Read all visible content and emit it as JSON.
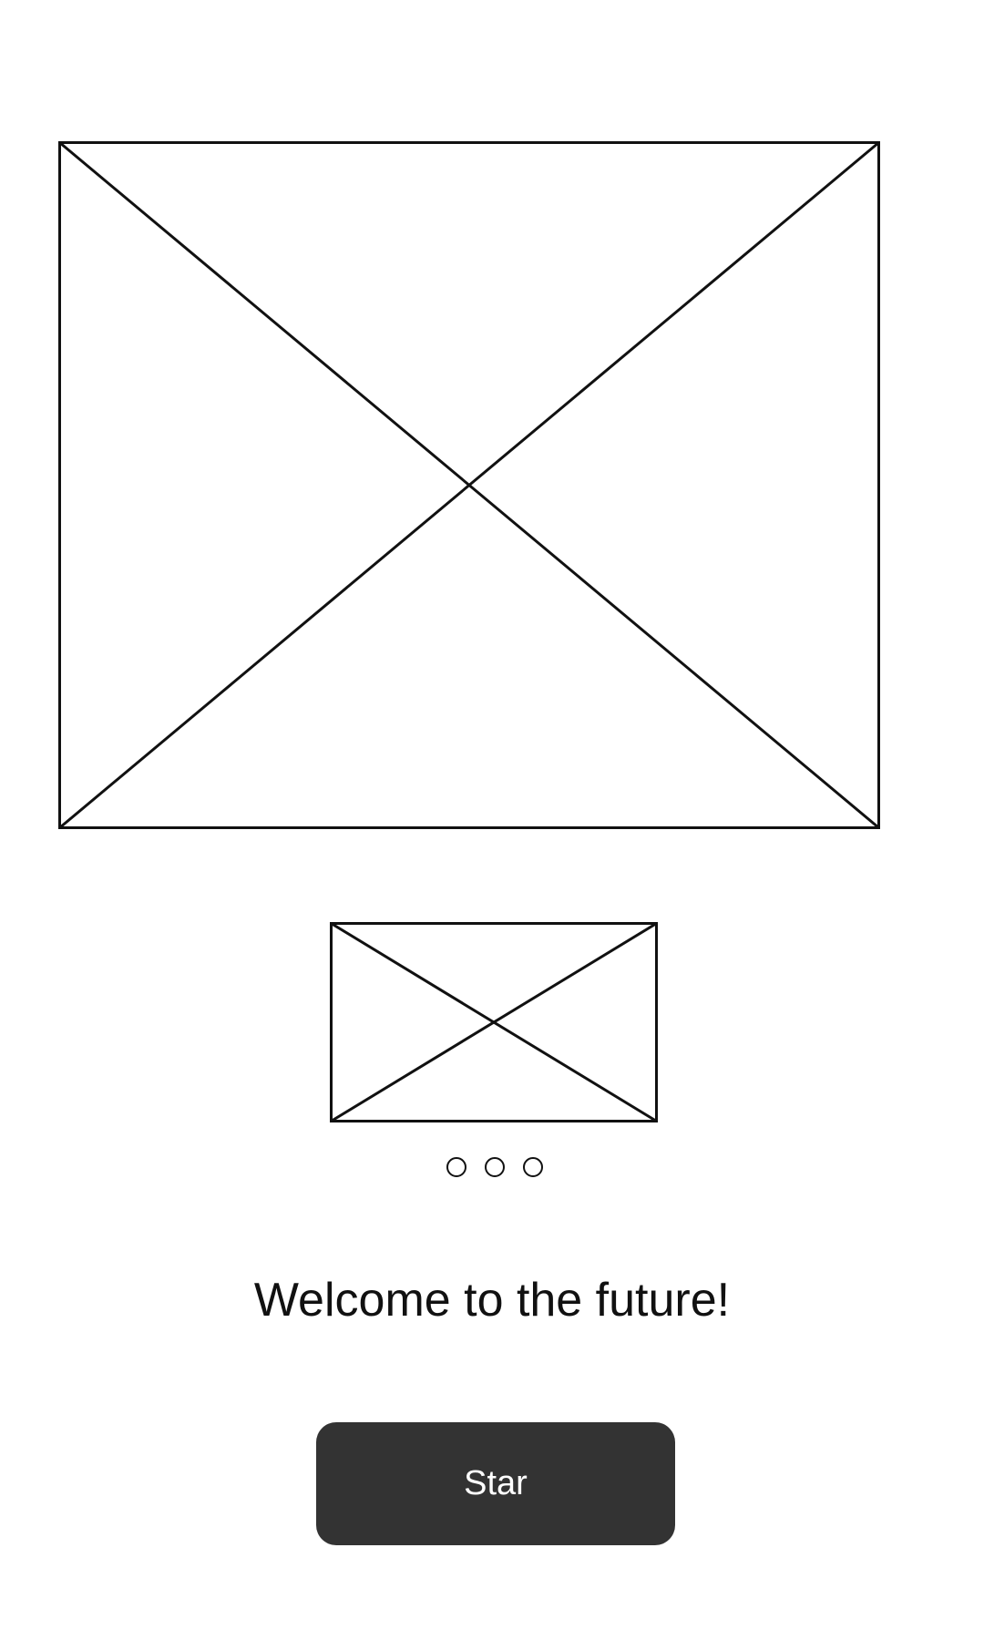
{
  "hero": {
    "icon": "image-placeholder-icon"
  },
  "carousel": {
    "icon": "image-placeholder-icon",
    "page_count": 3
  },
  "welcome": {
    "text": "Welcome to the future!"
  },
  "start_button": {
    "label": "Star"
  },
  "colors": {
    "button_bg": "#333333",
    "button_text": "#ffffff",
    "stroke": "#111111",
    "background": "#ffffff"
  }
}
